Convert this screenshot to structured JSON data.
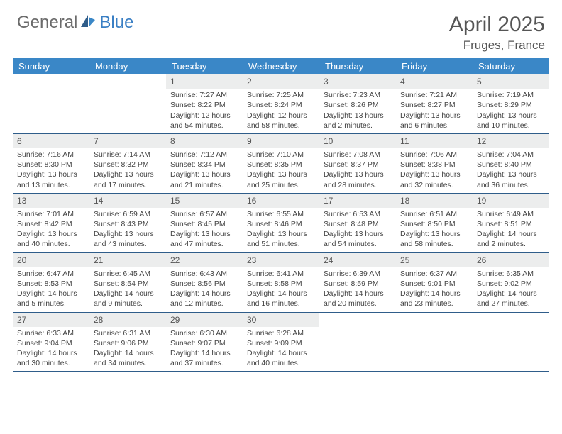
{
  "colors": {
    "header_blue": "#3a87c7",
    "logo_gray": "#6b6b6b",
    "logo_blue": "#3a7fc4",
    "daynum_bg": "#eceded",
    "week_border": "#2f5d8a",
    "text": "#444"
  },
  "logo": {
    "part1": "General",
    "part2": "Blue"
  },
  "title": "April 2025",
  "location": "Fruges, France",
  "weekdays": [
    "Sunday",
    "Monday",
    "Tuesday",
    "Wednesday",
    "Thursday",
    "Friday",
    "Saturday"
  ],
  "weeks": [
    [
      {
        "empty": true
      },
      {
        "empty": true
      },
      {
        "num": "1",
        "sunrise": "Sunrise: 7:27 AM",
        "sunset": "Sunset: 8:22 PM",
        "daylight": "Daylight: 12 hours and 54 minutes."
      },
      {
        "num": "2",
        "sunrise": "Sunrise: 7:25 AM",
        "sunset": "Sunset: 8:24 PM",
        "daylight": "Daylight: 12 hours and 58 minutes."
      },
      {
        "num": "3",
        "sunrise": "Sunrise: 7:23 AM",
        "sunset": "Sunset: 8:26 PM",
        "daylight": "Daylight: 13 hours and 2 minutes."
      },
      {
        "num": "4",
        "sunrise": "Sunrise: 7:21 AM",
        "sunset": "Sunset: 8:27 PM",
        "daylight": "Daylight: 13 hours and 6 minutes."
      },
      {
        "num": "5",
        "sunrise": "Sunrise: 7:19 AM",
        "sunset": "Sunset: 8:29 PM",
        "daylight": "Daylight: 13 hours and 10 minutes."
      }
    ],
    [
      {
        "num": "6",
        "sunrise": "Sunrise: 7:16 AM",
        "sunset": "Sunset: 8:30 PM",
        "daylight": "Daylight: 13 hours and 13 minutes."
      },
      {
        "num": "7",
        "sunrise": "Sunrise: 7:14 AM",
        "sunset": "Sunset: 8:32 PM",
        "daylight": "Daylight: 13 hours and 17 minutes."
      },
      {
        "num": "8",
        "sunrise": "Sunrise: 7:12 AM",
        "sunset": "Sunset: 8:34 PM",
        "daylight": "Daylight: 13 hours and 21 minutes."
      },
      {
        "num": "9",
        "sunrise": "Sunrise: 7:10 AM",
        "sunset": "Sunset: 8:35 PM",
        "daylight": "Daylight: 13 hours and 25 minutes."
      },
      {
        "num": "10",
        "sunrise": "Sunrise: 7:08 AM",
        "sunset": "Sunset: 8:37 PM",
        "daylight": "Daylight: 13 hours and 28 minutes."
      },
      {
        "num": "11",
        "sunrise": "Sunrise: 7:06 AM",
        "sunset": "Sunset: 8:38 PM",
        "daylight": "Daylight: 13 hours and 32 minutes."
      },
      {
        "num": "12",
        "sunrise": "Sunrise: 7:04 AM",
        "sunset": "Sunset: 8:40 PM",
        "daylight": "Daylight: 13 hours and 36 minutes."
      }
    ],
    [
      {
        "num": "13",
        "sunrise": "Sunrise: 7:01 AM",
        "sunset": "Sunset: 8:42 PM",
        "daylight": "Daylight: 13 hours and 40 minutes."
      },
      {
        "num": "14",
        "sunrise": "Sunrise: 6:59 AM",
        "sunset": "Sunset: 8:43 PM",
        "daylight": "Daylight: 13 hours and 43 minutes."
      },
      {
        "num": "15",
        "sunrise": "Sunrise: 6:57 AM",
        "sunset": "Sunset: 8:45 PM",
        "daylight": "Daylight: 13 hours and 47 minutes."
      },
      {
        "num": "16",
        "sunrise": "Sunrise: 6:55 AM",
        "sunset": "Sunset: 8:46 PM",
        "daylight": "Daylight: 13 hours and 51 minutes."
      },
      {
        "num": "17",
        "sunrise": "Sunrise: 6:53 AM",
        "sunset": "Sunset: 8:48 PM",
        "daylight": "Daylight: 13 hours and 54 minutes."
      },
      {
        "num": "18",
        "sunrise": "Sunrise: 6:51 AM",
        "sunset": "Sunset: 8:50 PM",
        "daylight": "Daylight: 13 hours and 58 minutes."
      },
      {
        "num": "19",
        "sunrise": "Sunrise: 6:49 AM",
        "sunset": "Sunset: 8:51 PM",
        "daylight": "Daylight: 14 hours and 2 minutes."
      }
    ],
    [
      {
        "num": "20",
        "sunrise": "Sunrise: 6:47 AM",
        "sunset": "Sunset: 8:53 PM",
        "daylight": "Daylight: 14 hours and 5 minutes."
      },
      {
        "num": "21",
        "sunrise": "Sunrise: 6:45 AM",
        "sunset": "Sunset: 8:54 PM",
        "daylight": "Daylight: 14 hours and 9 minutes."
      },
      {
        "num": "22",
        "sunrise": "Sunrise: 6:43 AM",
        "sunset": "Sunset: 8:56 PM",
        "daylight": "Daylight: 14 hours and 12 minutes."
      },
      {
        "num": "23",
        "sunrise": "Sunrise: 6:41 AM",
        "sunset": "Sunset: 8:58 PM",
        "daylight": "Daylight: 14 hours and 16 minutes."
      },
      {
        "num": "24",
        "sunrise": "Sunrise: 6:39 AM",
        "sunset": "Sunset: 8:59 PM",
        "daylight": "Daylight: 14 hours and 20 minutes."
      },
      {
        "num": "25",
        "sunrise": "Sunrise: 6:37 AM",
        "sunset": "Sunset: 9:01 PM",
        "daylight": "Daylight: 14 hours and 23 minutes."
      },
      {
        "num": "26",
        "sunrise": "Sunrise: 6:35 AM",
        "sunset": "Sunset: 9:02 PM",
        "daylight": "Daylight: 14 hours and 27 minutes."
      }
    ],
    [
      {
        "num": "27",
        "sunrise": "Sunrise: 6:33 AM",
        "sunset": "Sunset: 9:04 PM",
        "daylight": "Daylight: 14 hours and 30 minutes."
      },
      {
        "num": "28",
        "sunrise": "Sunrise: 6:31 AM",
        "sunset": "Sunset: 9:06 PM",
        "daylight": "Daylight: 14 hours and 34 minutes."
      },
      {
        "num": "29",
        "sunrise": "Sunrise: 6:30 AM",
        "sunset": "Sunset: 9:07 PM",
        "daylight": "Daylight: 14 hours and 37 minutes."
      },
      {
        "num": "30",
        "sunrise": "Sunrise: 6:28 AM",
        "sunset": "Sunset: 9:09 PM",
        "daylight": "Daylight: 14 hours and 40 minutes."
      },
      {
        "empty": true
      },
      {
        "empty": true
      },
      {
        "empty": true
      }
    ]
  ]
}
